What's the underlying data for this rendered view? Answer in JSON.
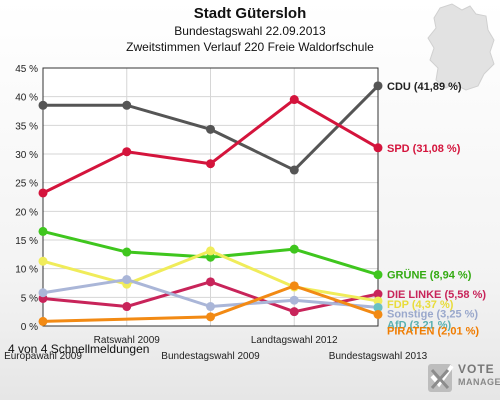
{
  "header": {
    "title": "Stadt Gütersloh",
    "subtitle1": "Bundestagswahl 22.09.2013",
    "subtitle2": "Zweitstimmen Verlauf 220 Freie Waldorfschule"
  },
  "footer": {
    "text": "4 von 4 Schnellmeldungen"
  },
  "logo": {
    "line1": "VOTE",
    "line2": "MANAGER"
  },
  "chart_data": {
    "type": "line",
    "ylim": [
      0,
      45
    ],
    "yticks": [
      0,
      5,
      10,
      15,
      20,
      25,
      30,
      35,
      40,
      45
    ],
    "ytick_labels": [
      "0 %",
      "5 %",
      "10 %",
      "15 %",
      "20 %",
      "25 %",
      "30 %",
      "35 %",
      "40 %",
      "45 %"
    ],
    "grid": true,
    "categories": [
      "Europawahl 2009",
      "Ratswahl 2009",
      "Bundestagswahl 2009",
      "Landtagswahl 2012",
      "Bundestagswahl 2013"
    ],
    "series": [
      {
        "name": "CDU",
        "end_label": "CDU (41,89 %)",
        "color": "#555555",
        "label_color": "#222222",
        "values": [
          38.5,
          38.5,
          34.3,
          27.2,
          41.89
        ]
      },
      {
        "name": "SPD",
        "end_label": "SPD (31,08 %)",
        "color": "#d4143c",
        "label_color": "#d4143c",
        "values": [
          23.2,
          30.4,
          28.3,
          39.5,
          31.08
        ]
      },
      {
        "name": "GRÜNE",
        "end_label": "GRÜNE (8,94 %)",
        "color": "#3fc61e",
        "label_color": "#33aa11",
        "values": [
          16.5,
          12.9,
          12.0,
          13.4,
          8.94
        ]
      },
      {
        "name": "DIE LINKE",
        "end_label": "DIE LINKE (5,58 %)",
        "color": "#c8245a",
        "label_color": "#c8245a",
        "values": [
          4.8,
          3.4,
          7.7,
          2.5,
          5.58
        ]
      },
      {
        "name": "FDP",
        "end_label": "FDP (4,37 %)",
        "color": "#f0ec5a",
        "label_color": "#e8dc3a",
        "values": [
          11.3,
          7.3,
          13.1,
          6.8,
          4.37
        ]
      },
      {
        "name": "Sonstige",
        "end_label": "Sonstige (3,25 %)",
        "color": "#aab6d8",
        "label_color": "#9aa8cc",
        "values": [
          5.8,
          8.1,
          3.4,
          4.5,
          3.25
        ]
      },
      {
        "name": "AfD",
        "end_label": "AfD (3,21 %)",
        "color": "#6ac2c2",
        "label_color": "#5ab0b0",
        "values": [
          null,
          null,
          null,
          null,
          3.21
        ]
      },
      {
        "name": "PIRATEN",
        "end_label": "PIRATEN (2,01 %)",
        "color": "#f28a14",
        "label_color": "#f07c00",
        "values": [
          0.8,
          null,
          1.6,
          7.0,
          2.01
        ]
      }
    ]
  }
}
